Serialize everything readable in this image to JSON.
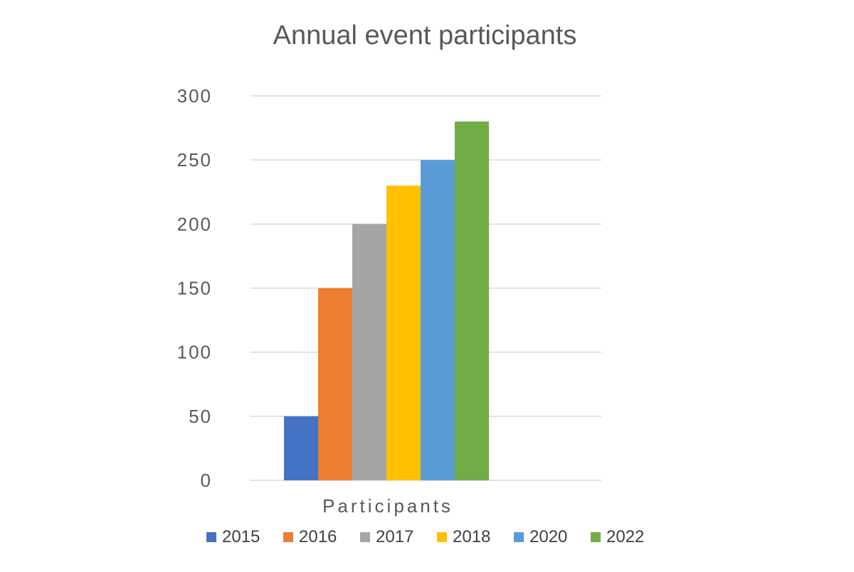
{
  "chart_data": {
    "type": "bar",
    "title": "Annual event participants",
    "categories": [
      "Participants"
    ],
    "series": [
      {
        "name": "2015",
        "values": [
          50
        ],
        "color": "#4472C4"
      },
      {
        "name": "2016",
        "values": [
          150
        ],
        "color": "#ED7D31"
      },
      {
        "name": "2017",
        "values": [
          200
        ],
        "color": "#A5A5A5"
      },
      {
        "name": "2018",
        "values": [
          230
        ],
        "color": "#FFC000"
      },
      {
        "name": "2020",
        "values": [
          250
        ],
        "color": "#5B9BD5"
      },
      {
        "name": "2022",
        "values": [
          280
        ],
        "color": "#70AD47"
      }
    ],
    "ylim": [
      0,
      300
    ],
    "yticks": [
      0,
      50,
      100,
      150,
      200,
      250,
      300
    ],
    "grid": true,
    "legend": "bottom"
  }
}
